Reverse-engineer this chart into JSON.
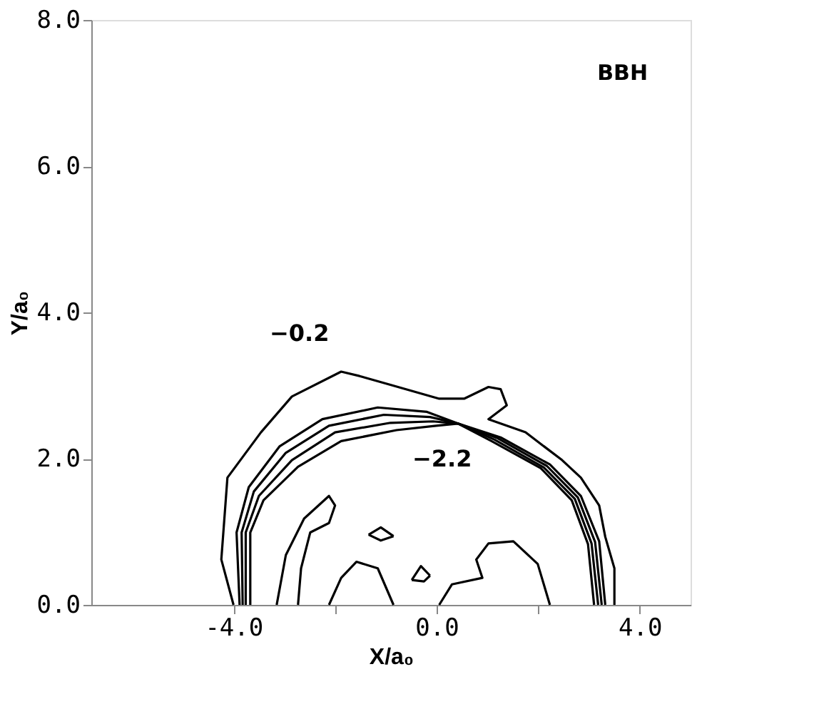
{
  "chart_data": {
    "type": "line",
    "xlabel": "X/a₀",
    "ylabel": "Y/a₀",
    "annotations": [
      "−0.2",
      "−2.2",
      "BBH"
    ],
    "xlim": [
      -6.8,
      5.0
    ],
    "ylim": [
      0,
      8
    ],
    "xticks": [
      {
        "value": -4,
        "label": "-4.0"
      },
      {
        "value": -2,
        "label": null
      },
      {
        "value": 0,
        "label": "0.0"
      },
      {
        "value": 2,
        "label": null
      },
      {
        "value": 4,
        "label": "4.0"
      }
    ],
    "yticks": [
      {
        "value": 0,
        "label": "0.0"
      },
      {
        "value": 2,
        "label": "2.0"
      },
      {
        "value": 4,
        "label": "4.0"
      },
      {
        "value": 6,
        "label": "6.0"
      },
      {
        "value": 8,
        "label": "8.0"
      }
    ],
    "series": [
      {
        "color": "#000000",
        "x": [
          -4.0,
          -4.24,
          -4.12,
          -3.46,
          -2.85,
          -1.88,
          -1.52,
          -0.91,
          0.05,
          0.54,
          1.02,
          1.26,
          1.38,
          1.02,
          1.75,
          2.47,
          2.84,
          3.2,
          3.32,
          3.5,
          3.5
        ],
        "values": [
          0,
          0.62,
          1.74,
          2.36,
          2.85,
          3.19,
          3.13,
          3.01,
          2.82,
          2.82,
          2.98,
          2.95,
          2.73,
          2.54,
          2.36,
          1.98,
          1.74,
          1.36,
          0.93,
          0.5,
          0
        ]
      },
      {
        "color": "#000000",
        "x": [
          -3.88,
          -3.94,
          -3.7,
          -3.09,
          -2.25,
          -1.16,
          -0.19,
          0.42,
          1.26,
          2.23,
          2.84,
          3.2,
          3.32
        ],
        "values": [
          0,
          0.99,
          1.61,
          2.17,
          2.54,
          2.7,
          2.64,
          2.48,
          2.29,
          1.92,
          1.49,
          0.87,
          0
        ]
      },
      {
        "color": "#000000",
        "x": [
          -3.82,
          -3.84,
          -3.6,
          -2.97,
          -2.12,
          -1.04,
          -0.13,
          0.42,
          1.2,
          2.17,
          2.78,
          3.12,
          3.25
        ],
        "values": [
          0,
          0.99,
          1.55,
          2.08,
          2.45,
          2.6,
          2.57,
          2.48,
          2.28,
          1.9,
          1.47,
          0.86,
          0
        ]
      },
      {
        "color": "#000000",
        "x": [
          -3.76,
          -3.76,
          -3.5,
          -2.85,
          -2.0,
          -0.91,
          -0.07,
          0.42,
          1.14,
          2.11,
          2.72,
          3.05,
          3.18
        ],
        "values": [
          0,
          0.99,
          1.49,
          1.98,
          2.36,
          2.49,
          2.51,
          2.48,
          2.26,
          1.88,
          1.45,
          0.84,
          0
        ]
      },
      {
        "color": "#000000",
        "x": [
          -3.67,
          -3.67,
          -3.41,
          -2.73,
          -1.88,
          -0.79,
          -0.01,
          0.42,
          1.08,
          2.05,
          2.66,
          2.98,
          3.1
        ],
        "values": [
          0,
          0.99,
          1.43,
          1.89,
          2.24,
          2.39,
          2.45,
          2.48,
          2.24,
          1.87,
          1.43,
          0.83,
          0
        ]
      },
      {
        "color": "#000000",
        "x": [
          -3.15,
          -2.97,
          -2.61,
          -2.12,
          -2.0,
          -2.12,
          -2.49,
          -2.67,
          -2.73
        ],
        "values": [
          0,
          0.68,
          1.18,
          1.49,
          1.36,
          1.12,
          0.99,
          0.5,
          0
        ]
      },
      {
        "color": "#000000",
        "x": [
          -0.49,
          -0.31,
          -0.13
        ],
        "values": [
          0.34,
          0.53,
          0.4
        ]
      },
      {
        "color": "#000000",
        "x": [
          -0.49,
          -0.25,
          -0.13
        ],
        "values": [
          0.34,
          0.32,
          0.4
        ]
      },
      {
        "color": "#000000",
        "x": [
          -1.34,
          -1.1,
          -0.85
        ],
        "values": [
          0.96,
          1.06,
          0.94
        ]
      },
      {
        "color": "#000000",
        "x": [
          -1.34,
          -1.1,
          -0.85
        ],
        "values": [
          0.96,
          0.88,
          0.94
        ]
      },
      {
        "color": "#000000",
        "x": [
          -2.12,
          -1.88,
          -1.58,
          -1.16,
          -0.85
        ],
        "values": [
          0,
          0.37,
          0.59,
          0.5,
          0
        ]
      },
      {
        "color": "#000000",
        "x": [
          0.05,
          0.3,
          0.9,
          0.78,
          1.02,
          1.51,
          1.99,
          2.23
        ],
        "values": [
          0,
          0.28,
          0.37,
          0.62,
          0.84,
          0.87,
          0.56,
          0
        ]
      }
    ]
  }
}
